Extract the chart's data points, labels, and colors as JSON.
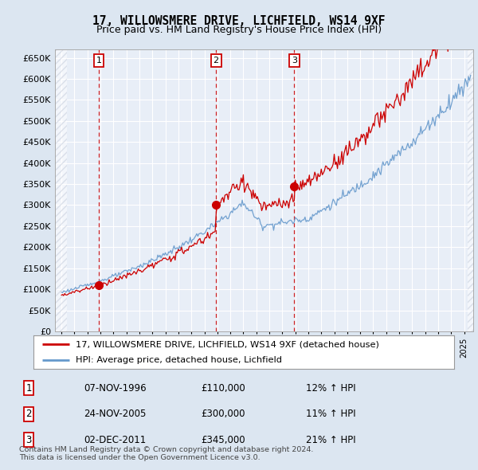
{
  "title": "17, WILLOWSMERE DRIVE, LICHFIELD, WS14 9XF",
  "subtitle": "Price paid vs. HM Land Registry's House Price Index (HPI)",
  "ylim": [
    0,
    670000
  ],
  "yticks": [
    0,
    50000,
    100000,
    150000,
    200000,
    250000,
    300000,
    350000,
    400000,
    450000,
    500000,
    550000,
    600000,
    650000
  ],
  "ytick_labels": [
    "£0",
    "£50K",
    "£100K",
    "£150K",
    "£200K",
    "£250K",
    "£300K",
    "£350K",
    "£400K",
    "£450K",
    "£500K",
    "£550K",
    "£600K",
    "£650K"
  ],
  "xlim_start": 1993.5,
  "xlim_end": 2025.7,
  "hatch_end": 1994.42,
  "sale_dates": [
    1996.87,
    2005.9,
    2011.92
  ],
  "sale_prices": [
    110000,
    300000,
    345000
  ],
  "sale_labels": [
    "1",
    "2",
    "3"
  ],
  "sale_date_str": [
    "07-NOV-1996",
    "24-NOV-2005",
    "02-DEC-2011"
  ],
  "sale_price_str": [
    "£110,000",
    "£300,000",
    "£345,000"
  ],
  "sale_hpi_str": [
    "12% ↑ HPI",
    "11% ↑ HPI",
    "21% ↑ HPI"
  ],
  "legend_line1": "17, WILLOWSMERE DRIVE, LICHFIELD, WS14 9XF (detached house)",
  "legend_line2": "HPI: Average price, detached house, Lichfield",
  "footnote": "Contains HM Land Registry data © Crown copyright and database right 2024.\nThis data is licensed under the Open Government Licence v3.0.",
  "line_color_red": "#cc0000",
  "line_color_blue": "#6699cc",
  "bg_color": "#dce6f1",
  "plot_bg": "#e8eef7",
  "hatch_color": "#c0c8d8",
  "grid_color": "#ffffff"
}
